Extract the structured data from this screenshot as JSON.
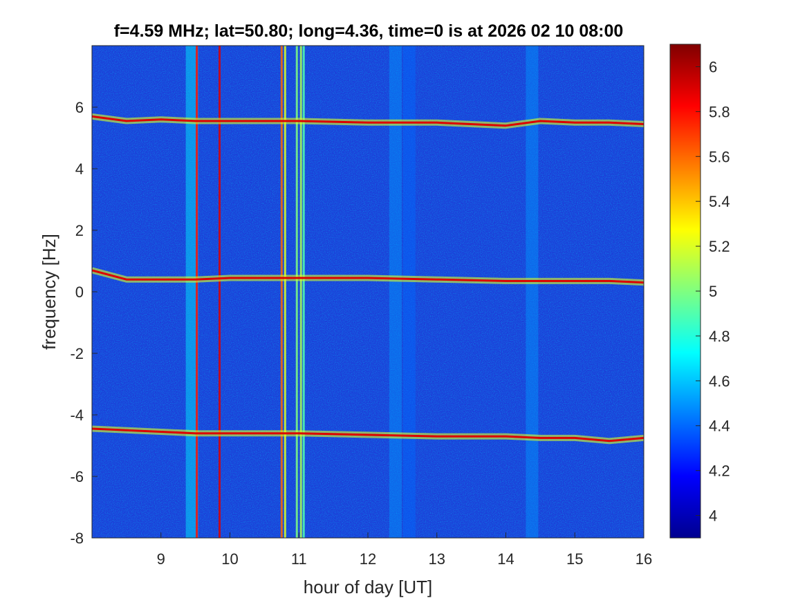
{
  "chart_data": {
    "type": "heatmap",
    "title": "f=4.59 MHz;  lat=50.80; long=4.36, time=0 is at 2026 02 10 08:00",
    "xlabel": "hour of day [UT]",
    "ylabel": "frequency [Hz]",
    "xlim": [
      8,
      16
    ],
    "ylim": [
      -8,
      8
    ],
    "x_ticks": [
      9,
      10,
      11,
      12,
      13,
      14,
      15,
      16
    ],
    "y_ticks": [
      -8,
      -6,
      -4,
      -2,
      0,
      2,
      4,
      6
    ],
    "colormap": "jet",
    "colorbar": {
      "limits": [
        3.9,
        6.1
      ],
      "ticks": [
        4,
        4.2,
        4.4,
        4.6,
        4.8,
        5,
        5.2,
        5.4,
        5.6,
        5.8,
        6
      ]
    },
    "background_level": 4.15,
    "doppler_traces": [
      {
        "nominal_frequency": 5.6,
        "points": [
          [
            8.0,
            5.7
          ],
          [
            8.5,
            5.55
          ],
          [
            9.0,
            5.6
          ],
          [
            9.5,
            5.55
          ],
          [
            10.0,
            5.55
          ],
          [
            11.0,
            5.55
          ],
          [
            12.0,
            5.5
          ],
          [
            13.0,
            5.5
          ],
          [
            14.0,
            5.4
          ],
          [
            14.5,
            5.55
          ],
          [
            15.0,
            5.5
          ],
          [
            15.5,
            5.5
          ],
          [
            16.0,
            5.45
          ]
        ]
      },
      {
        "nominal_frequency": 0.4,
        "points": [
          [
            8.0,
            0.7
          ],
          [
            8.5,
            0.4
          ],
          [
            9.0,
            0.4
          ],
          [
            9.5,
            0.4
          ],
          [
            10.0,
            0.45
          ],
          [
            11.0,
            0.45
          ],
          [
            12.0,
            0.45
          ],
          [
            13.0,
            0.4
          ],
          [
            14.0,
            0.35
          ],
          [
            14.5,
            0.35
          ],
          [
            15.0,
            0.35
          ],
          [
            15.5,
            0.35
          ],
          [
            16.0,
            0.3
          ]
        ]
      },
      {
        "nominal_frequency": -4.6,
        "points": [
          [
            8.0,
            -4.45
          ],
          [
            8.5,
            -4.5
          ],
          [
            9.0,
            -4.55
          ],
          [
            9.5,
            -4.6
          ],
          [
            10.0,
            -4.6
          ],
          [
            11.0,
            -4.6
          ],
          [
            12.0,
            -4.65
          ],
          [
            13.0,
            -4.7
          ],
          [
            14.0,
            -4.7
          ],
          [
            14.5,
            -4.75
          ],
          [
            15.0,
            -4.75
          ],
          [
            15.5,
            -4.85
          ],
          [
            16.0,
            -4.75
          ]
        ]
      }
    ],
    "broadband_interference": [
      {
        "x": 9.45,
        "level": 4.7
      },
      {
        "x": 9.52,
        "level": 5.8
      },
      {
        "x": 9.85,
        "level": 5.9
      },
      {
        "x": 10.75,
        "level": 5.6
      },
      {
        "x": 10.8,
        "level": 5.2
      },
      {
        "x": 10.97,
        "level": 5.0
      },
      {
        "x": 11.03,
        "level": 5.1
      },
      {
        "x": 11.07,
        "level": 4.9
      },
      {
        "x": 12.4,
        "level": 4.5
      },
      {
        "x": 12.6,
        "level": 4.4
      },
      {
        "x": 14.38,
        "level": 4.5
      }
    ]
  }
}
